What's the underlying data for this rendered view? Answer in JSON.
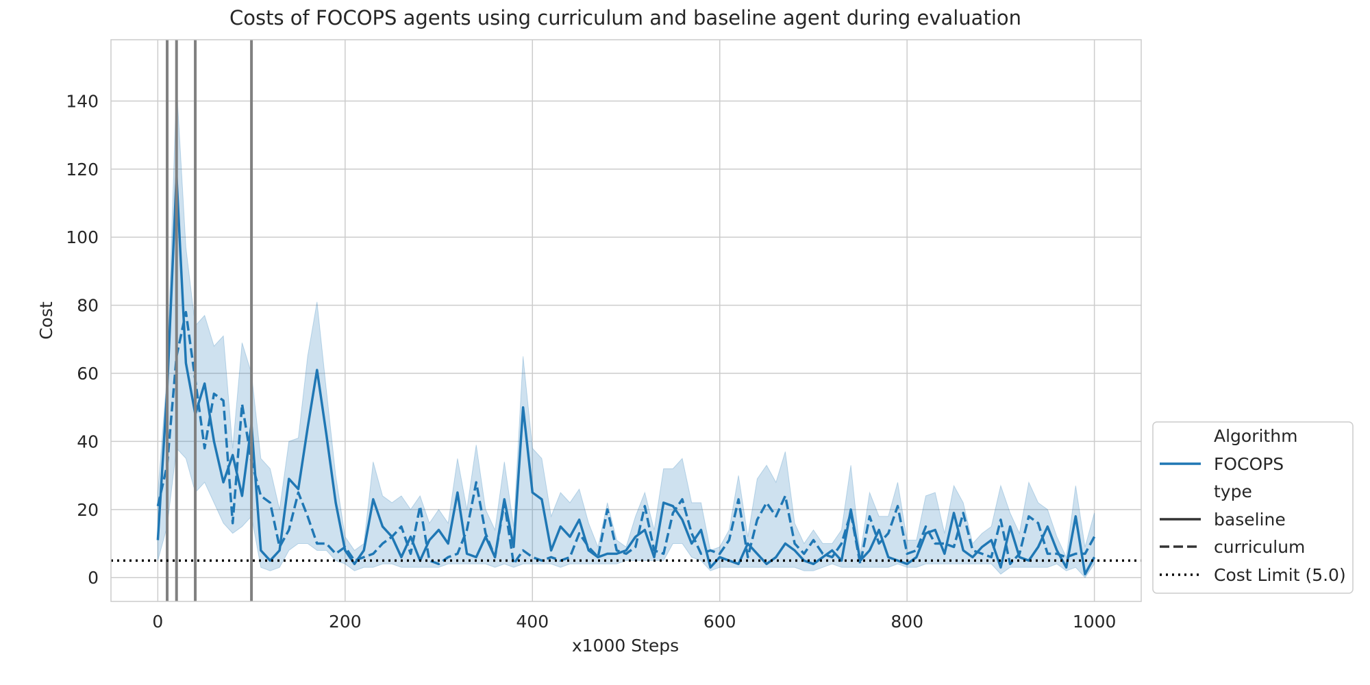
{
  "chart_data": {
    "type": "line",
    "title": "Costs of FOCOPS agents using curriculum and baseline agent during evaluation",
    "xlabel": "x1000 Steps",
    "ylabel": "Cost",
    "xlim": [
      -50,
      1050
    ],
    "ylim": [
      -7,
      158
    ],
    "xticks": [
      0,
      200,
      400,
      600,
      800,
      1000
    ],
    "yticks": [
      0,
      20,
      40,
      60,
      80,
      100,
      120,
      140
    ],
    "grid": true,
    "legend_placement": "lower-right, outside plot",
    "legend": {
      "title_algorithm": "Algorithm",
      "algorithm": "FOCOPS",
      "title_type": "type",
      "baseline": "baseline",
      "curriculum": "curriculum",
      "cost_limit": "Cost Limit (5.0)"
    },
    "colors": {
      "series": "#1f77b4",
      "band": "#1f77b4",
      "vline": "#808080",
      "limit": "#000000",
      "grid": "#cccccc"
    },
    "cost_limit": 5.0,
    "vlines": [
      10,
      20,
      40,
      100
    ],
    "x": [
      0,
      10,
      20,
      30,
      40,
      50,
      60,
      70,
      80,
      90,
      100,
      110,
      120,
      130,
      140,
      150,
      160,
      170,
      180,
      190,
      200,
      210,
      220,
      230,
      240,
      250,
      260,
      270,
      280,
      290,
      300,
      310,
      320,
      330,
      340,
      350,
      360,
      370,
      380,
      390,
      400,
      410,
      420,
      430,
      440,
      450,
      460,
      470,
      480,
      490,
      500,
      510,
      520,
      530,
      540,
      550,
      560,
      570,
      580,
      590,
      600,
      610,
      620,
      630,
      640,
      650,
      660,
      670,
      680,
      690,
      700,
      710,
      720,
      730,
      740,
      750,
      760,
      770,
      780,
      790,
      800,
      810,
      820,
      830,
      840,
      850,
      860,
      870,
      880,
      890,
      900,
      910,
      920,
      930,
      940,
      950,
      960,
      970,
      980,
      990,
      1000
    ],
    "series": [
      {
        "name": "baseline",
        "style": "solid",
        "values": [
          11,
          55,
          118,
          63,
          48,
          57,
          40,
          28,
          36,
          24,
          45,
          8,
          5,
          8,
          29,
          26,
          44,
          61,
          42,
          22,
          8,
          4,
          8,
          23,
          15,
          12,
          6,
          12,
          5,
          11,
          14,
          10,
          25,
          7,
          6,
          12,
          6,
          23,
          9,
          50,
          25,
          23,
          8,
          15,
          12,
          17,
          8,
          6,
          7,
          7,
          8,
          12,
          14,
          6,
          22,
          21,
          17,
          10,
          14,
          3,
          6,
          5,
          4,
          10,
          7,
          4,
          6,
          10,
          8,
          5,
          4,
          6,
          8,
          5,
          20,
          5,
          8,
          14,
          6,
          5,
          4,
          6,
          13,
          14,
          7,
          19,
          8,
          6,
          9,
          11,
          3,
          15,
          6,
          5,
          9,
          15,
          8,
          3,
          18,
          1,
          6
        ]
      },
      {
        "name": "curriculum",
        "style": "dashed",
        "values": [
          21,
          33,
          65,
          78,
          58,
          38,
          54,
          52,
          16,
          51,
          34,
          24,
          22,
          9,
          14,
          25,
          18,
          10,
          10,
          7,
          9,
          5,
          6,
          7,
          10,
          12,
          15,
          7,
          21,
          5,
          4,
          6,
          7,
          14,
          28,
          13,
          6,
          22,
          4,
          8,
          6,
          5,
          6,
          5,
          6,
          13,
          9,
          6,
          20,
          8,
          7,
          9,
          21,
          8,
          7,
          19,
          23,
          13,
          7,
          8,
          7,
          11,
          23,
          6,
          17,
          22,
          18,
          24,
          10,
          7,
          11,
          7,
          6,
          10,
          19,
          4,
          18,
          10,
          13,
          21,
          7,
          8,
          15,
          10,
          10,
          9,
          19,
          8,
          7,
          6,
          17,
          4,
          7,
          18,
          16,
          7,
          7,
          6,
          7,
          7,
          12
        ]
      }
    ],
    "band": {
      "lower": [
        5,
        15,
        38,
        35,
        25,
        28,
        22,
        16,
        13,
        15,
        18,
        3,
        2,
        3,
        8,
        10,
        10,
        8,
        8,
        5,
        4,
        2,
        3,
        3,
        4,
        4,
        3,
        3,
        3,
        3,
        3,
        4,
        4,
        4,
        4,
        4,
        3,
        4,
        3,
        4,
        4,
        4,
        4,
        3,
        4,
        4,
        4,
        4,
        4,
        4,
        5,
        5,
        5,
        5,
        5,
        10,
        10,
        6,
        5,
        2,
        3,
        3,
        3,
        3,
        3,
        3,
        3,
        3,
        3,
        2,
        2,
        3,
        4,
        3,
        3,
        3,
        3,
        3,
        3,
        4,
        3,
        3,
        4,
        4,
        4,
        4,
        4,
        4,
        4,
        4,
        1,
        3,
        3,
        3,
        3,
        3,
        4,
        2,
        3,
        0,
        4
      ],
      "upper": [
        25,
        60,
        145,
        97,
        74,
        77,
        68,
        71,
        38,
        69,
        60,
        35,
        32,
        20,
        40,
        41,
        65,
        81,
        55,
        30,
        12,
        8,
        10,
        34,
        24,
        22,
        24,
        20,
        24,
        16,
        20,
        16,
        35,
        20,
        39,
        20,
        14,
        34,
        15,
        65,
        38,
        35,
        18,
        25,
        22,
        26,
        16,
        9,
        22,
        11,
        9,
        18,
        25,
        14,
        32,
        32,
        35,
        22,
        22,
        8,
        9,
        14,
        30,
        12,
        29,
        33,
        28,
        37,
        16,
        10,
        14,
        10,
        10,
        14,
        33,
        7,
        25,
        18,
        18,
        28,
        11,
        11,
        24,
        25,
        13,
        27,
        22,
        10,
        13,
        15,
        27,
        19,
        13,
        28,
        22,
        20,
        12,
        6,
        27,
        9,
        19
      ]
    }
  }
}
